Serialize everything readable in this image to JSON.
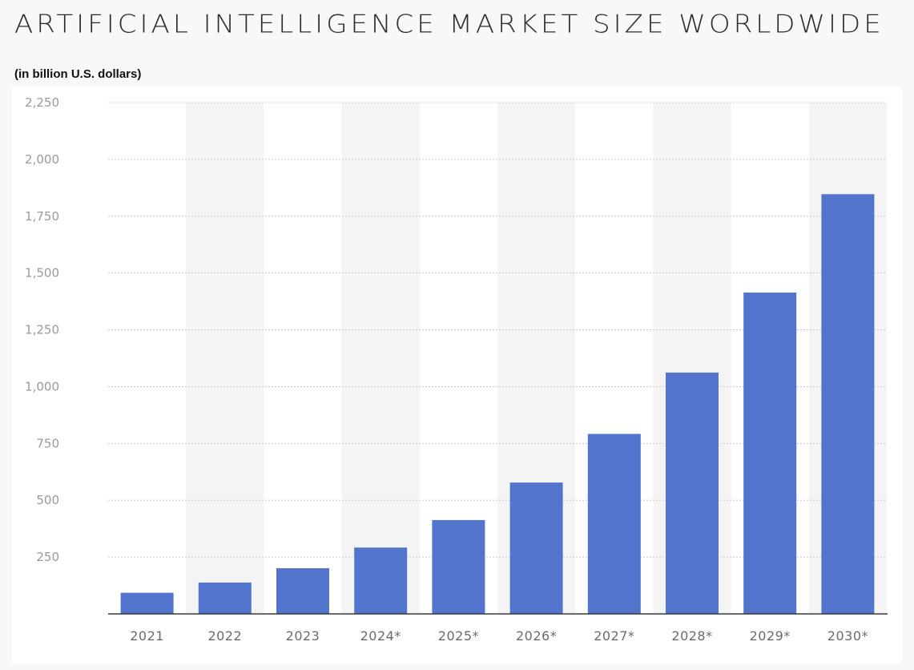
{
  "header": {
    "title": "ARTIFICIAL INTELLIGENCE MARKET SIZE WORLDWIDE",
    "subtitle": "(in billion U.S. dollars)"
  },
  "colors": {
    "bar": "#5274cc",
    "stripe": "#f4f4f4",
    "grid": "#c9c9c9",
    "axis": "#3a3a3a"
  },
  "chart_data": {
    "type": "bar",
    "title": "ARTIFICIAL INTELLIGENCE MARKET SIZE WORLDWIDE",
    "subtitle": "(in billion U.S. dollars)",
    "xlabel": "",
    "ylabel": "",
    "categories": [
      "2021",
      "2022",
      "2023",
      "2024*",
      "2025*",
      "2026*",
      "2027*",
      "2028*",
      "2029*",
      "2030*"
    ],
    "values": [
      93,
      138,
      201,
      292,
      413,
      578,
      792,
      1062,
      1414,
      1847
    ],
    "ylim": [
      0,
      2250
    ],
    "yticks": [
      0,
      250,
      500,
      750,
      1000,
      1250,
      1500,
      1750,
      2000,
      2250
    ],
    "ytick_labels": [
      "",
      "250",
      "500",
      "750",
      "1,000",
      "1,250",
      "1,500",
      "1,750",
      "2,000",
      "2,250"
    ],
    "grid": true,
    "legend": "none"
  }
}
